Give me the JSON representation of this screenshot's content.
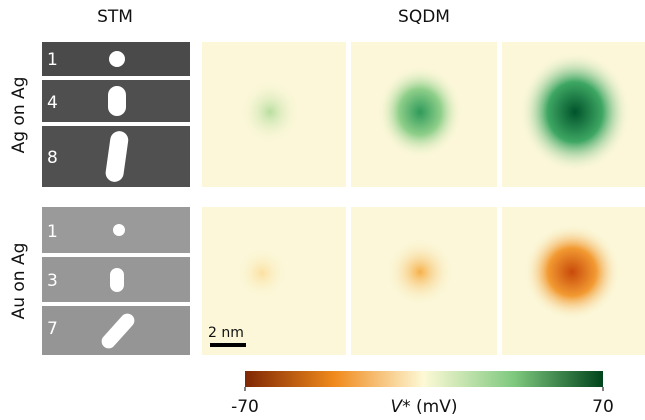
{
  "header": {
    "stm": "STM",
    "sqdm": "SQDM"
  },
  "rows": [
    {
      "label": "Ag on Ag",
      "stm_labels": [
        "1",
        "4",
        "8"
      ]
    },
    {
      "label": "Au on Ag",
      "stm_labels": [
        "1",
        "3",
        "7"
      ]
    }
  ],
  "scale_bar": "2 nm",
  "colorbar": {
    "label": {
      "italic": "V",
      "rest": "* (mV)"
    },
    "ticks": [
      -70,
      70
    ]
  }
}
